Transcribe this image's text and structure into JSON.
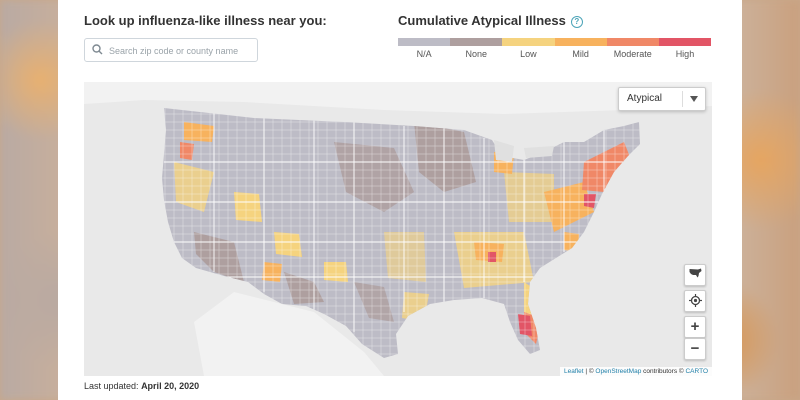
{
  "lookup": {
    "title": "Look up influenza-like illness near you:",
    "search_placeholder": "Search zip code or county name"
  },
  "legend": {
    "title": "Cumulative Atypical Illness",
    "help_icon": "question-circle-icon",
    "levels": [
      {
        "label": "N/A",
        "color": "#bdbcc6"
      },
      {
        "label": "None",
        "color": "#ae9f9f"
      },
      {
        "label": "Low",
        "color": "#f5d37f"
      },
      {
        "label": "Mild",
        "color": "#f7b25e"
      },
      {
        "label": "Moderate",
        "color": "#f08867"
      },
      {
        "label": "High",
        "color": "#e25566"
      }
    ]
  },
  "map": {
    "dropdown_value": "Atypical",
    "controls": [
      "usa-map-icon",
      "locate-icon",
      "zoom-in",
      "zoom-out"
    ],
    "zoom_in_label": "+",
    "zoom_out_label": "−",
    "attribution": {
      "leaflet": "Leaflet",
      "sep": " | © ",
      "osm": "OpenStreetMap",
      "contrib": " contributors © ",
      "carto": "CARTO"
    }
  },
  "footer": {
    "updated_label": "Last updated:",
    "updated_date": "April 20, 2020"
  }
}
